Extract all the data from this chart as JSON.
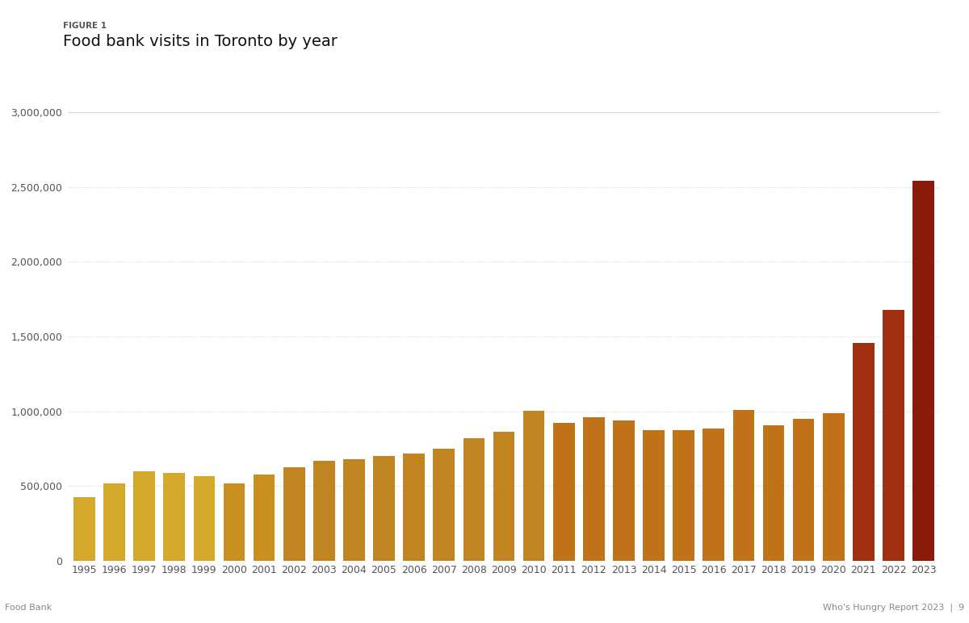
{
  "title_label": "FIGURE 1",
  "title": "Food bank visits in Toronto by year",
  "footer_left": "Food Bank",
  "footer_right": "Who's Hungry Report 2023  |  9",
  "years": [
    1995,
    1996,
    1997,
    1998,
    1999,
    2000,
    2001,
    2002,
    2003,
    2004,
    2005,
    2006,
    2007,
    2008,
    2009,
    2010,
    2011,
    2012,
    2013,
    2014,
    2015,
    2016,
    2017,
    2018,
    2019,
    2020,
    2021,
    2022,
    2023
  ],
  "values": [
    425000,
    515000,
    600000,
    585000,
    565000,
    515000,
    575000,
    625000,
    668000,
    680000,
    698000,
    715000,
    750000,
    820000,
    865000,
    1005000,
    920000,
    960000,
    940000,
    875000,
    875000,
    885000,
    1010000,
    905000,
    950000,
    985000,
    1455000,
    1680000,
    2540000
  ],
  "bar_colors": [
    "#D4A82A",
    "#D4A82A",
    "#D4A82A",
    "#D4A82A",
    "#D4A82A",
    "#C99020",
    "#C99020",
    "#C08520",
    "#C08520",
    "#C08520",
    "#C08520",
    "#C08520",
    "#C08520",
    "#C08520",
    "#C08520",
    "#C08520",
    "#C07218",
    "#C07218",
    "#C07218",
    "#C07218",
    "#C07218",
    "#C07218",
    "#C07218",
    "#C07218",
    "#C07218",
    "#C07218",
    "#A03010",
    "#A03010",
    "#8B1A0A"
  ],
  "ylim": [
    0,
    3000000
  ],
  "yticks": [
    0,
    500000,
    1000000,
    1500000,
    2000000,
    2500000,
    3000000
  ],
  "background_color": "#ffffff",
  "grid_color": "#cccccc",
  "bar_width": 0.72,
  "title_label_fontsize": 7.5,
  "title_fontsize": 14,
  "tick_fontsize": 9,
  "footer_fontsize": 8
}
